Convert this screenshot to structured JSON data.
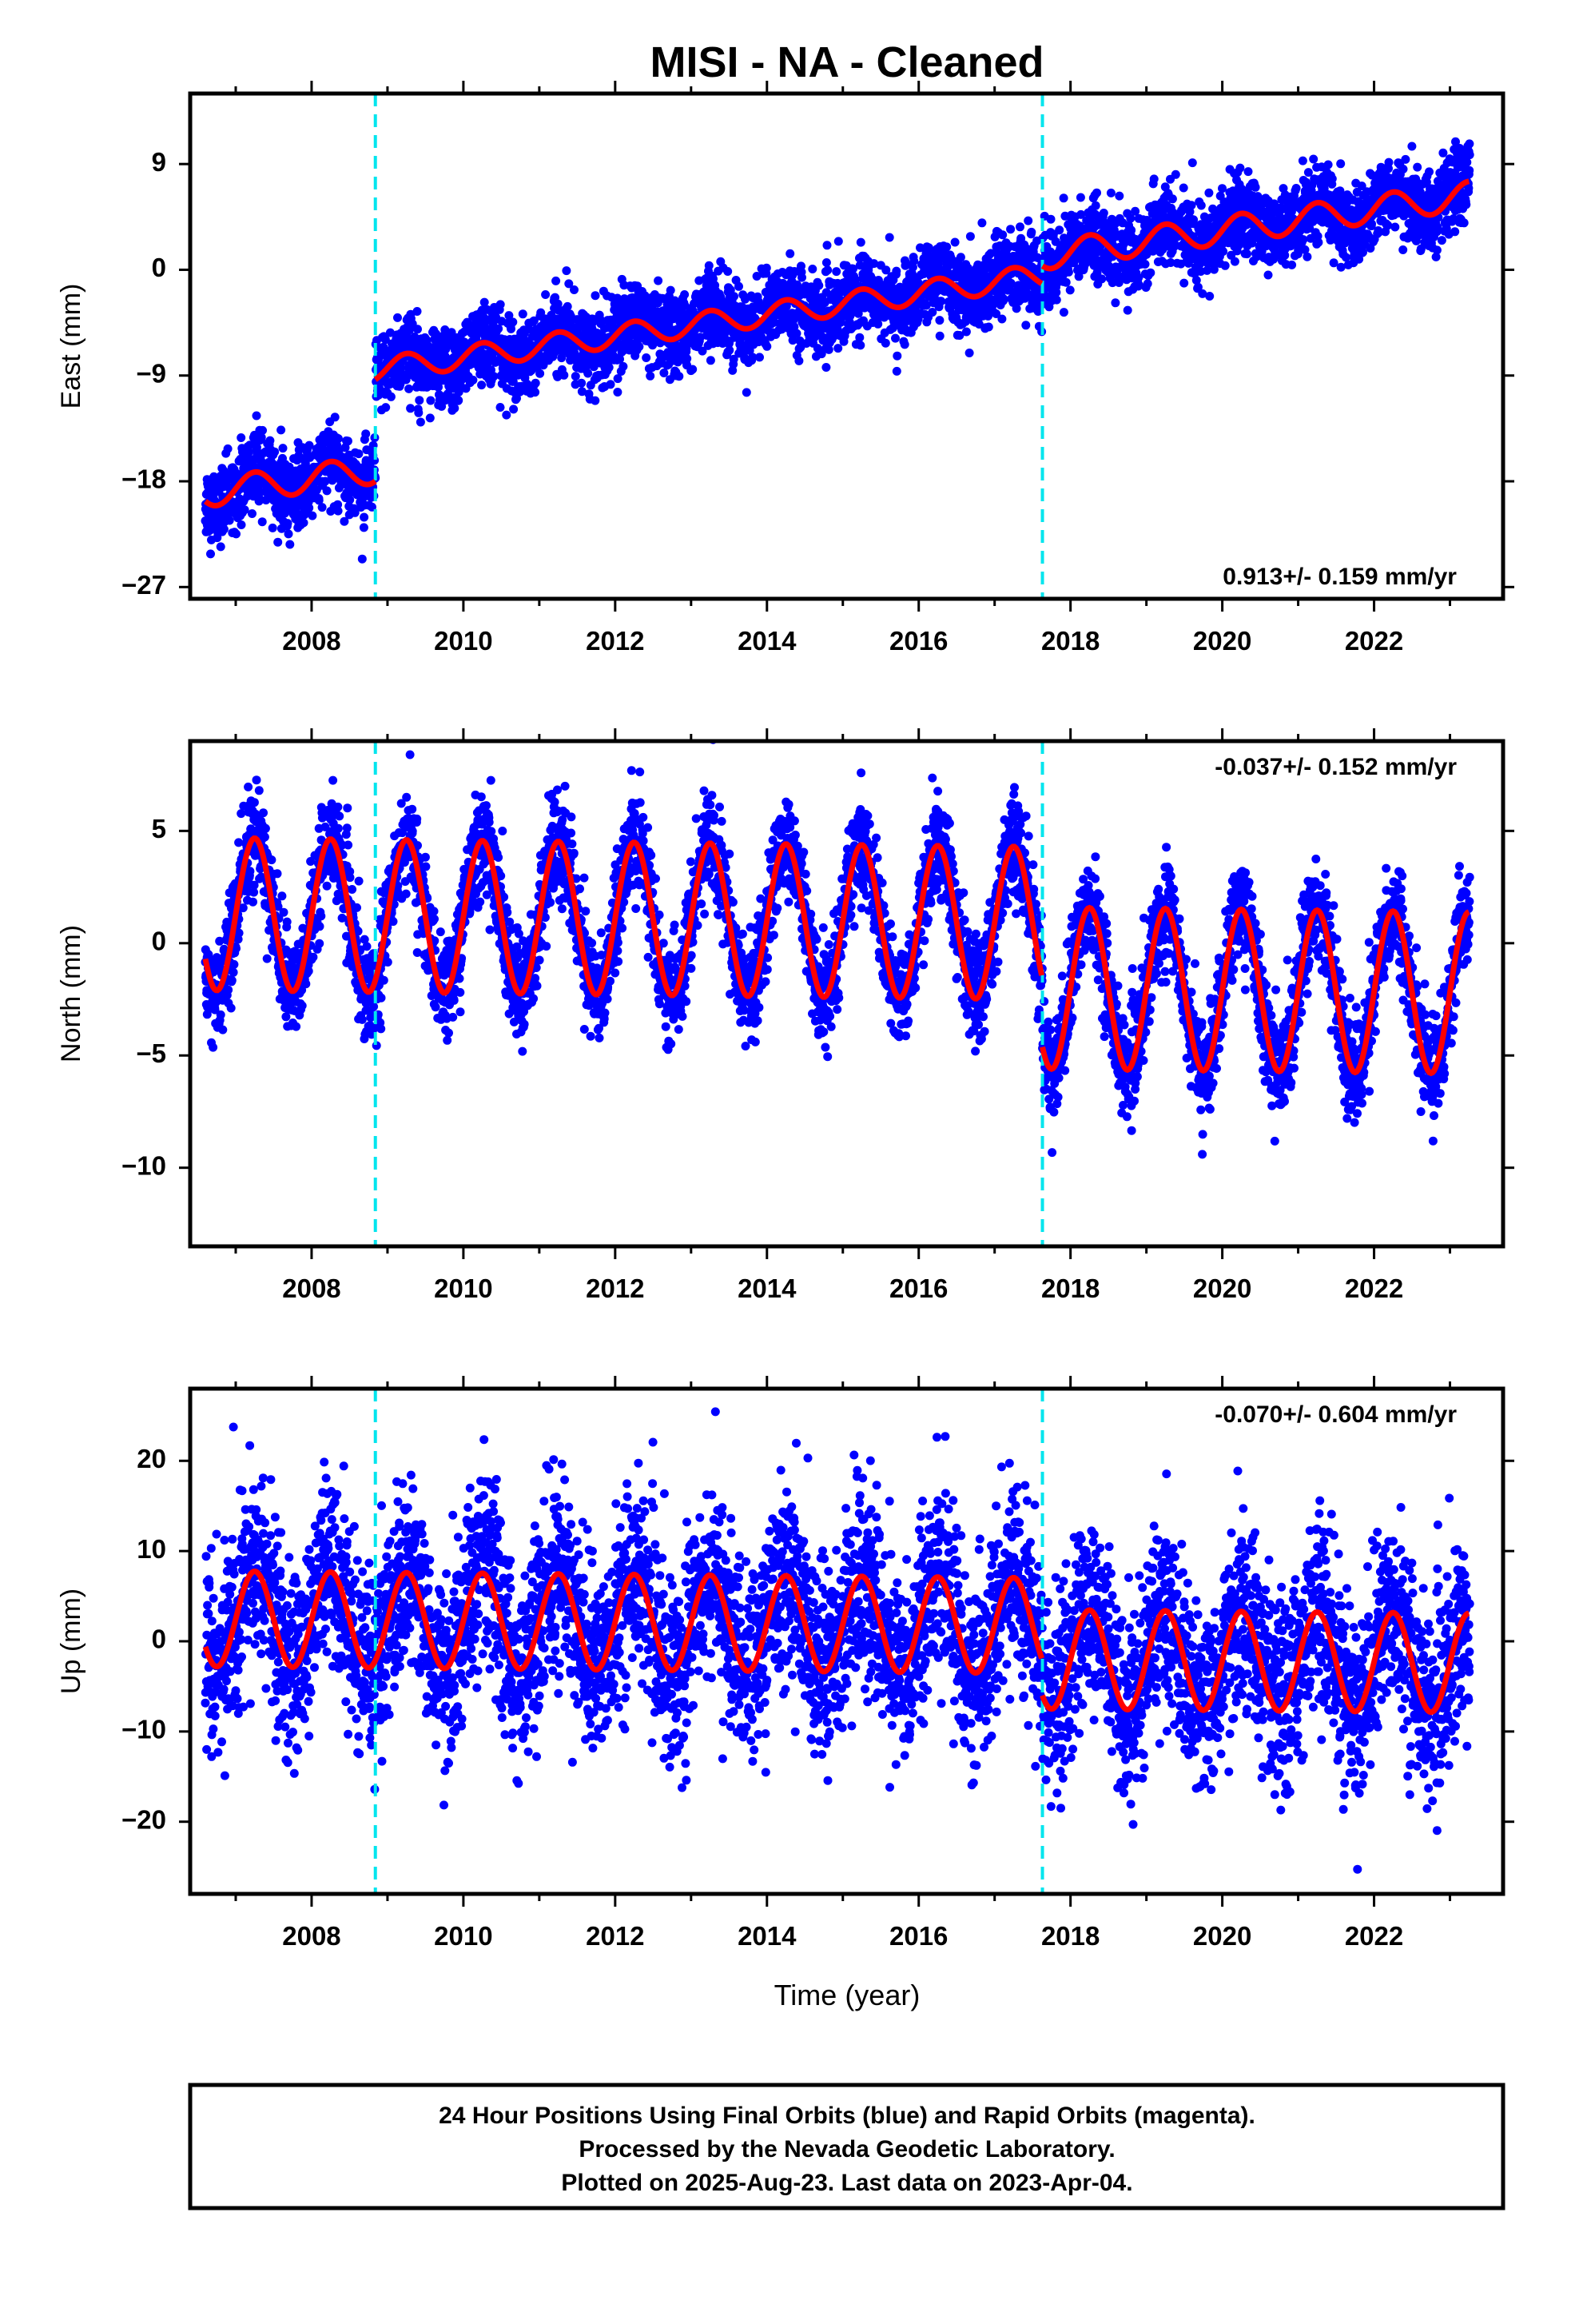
{
  "title": "MISI  - NA - Cleaned",
  "xlabel": "Time (year)",
  "caption": [
    "24 Hour Positions Using Final Orbits (blue) and Rapid Orbits (magenta).",
    "Processed by the Nevada Geodetic Laboratory.",
    "Plotted on 2025-Aug-23. Last data on 2023-Apr-04."
  ],
  "colors": {
    "points": "#0000ff",
    "model": "#ff0000",
    "offset_lines": "#00e5ee",
    "frame": "#000000"
  },
  "chart_data": [
    {
      "type": "scatter",
      "ylabel": "East (mm)",
      "rate_label": "0.913+/- 0.159 mm/yr",
      "rate_position": "bottom-right",
      "xlim": [
        2006.4,
        2023.7
      ],
      "ylim": [
        -28,
        15
      ],
      "yticks": [
        -27,
        -18,
        -9,
        0,
        9
      ],
      "yticklabels": [
        "−27",
        "−18",
        "−9",
        "0",
        "9"
      ],
      "xticks": [
        2008,
        2010,
        2012,
        2014,
        2016,
        2018,
        2020,
        2022
      ],
      "offset_epochs": [
        2008.84,
        2017.63
      ],
      "model": {
        "segments": [
          {
            "start": 2006.6,
            "end": 2008.84,
            "intercept": -19.0,
            "slope": 0.9,
            "amplitude": 1.2
          },
          {
            "start": 2008.84,
            "end": 2017.63,
            "intercept": -8.5,
            "slope": 0.913,
            "amplitude": 1.0
          },
          {
            "start": 2017.63,
            "end": 2023.26,
            "intercept": 1.2,
            "slope": 0.913,
            "amplitude": 1.2
          }
        ],
        "period": 1.0
      },
      "points_summary": {
        "start": 2006.6,
        "end": 2023.26,
        "scatter_sd": 1.6
      }
    },
    {
      "type": "scatter",
      "ylabel": "North (mm)",
      "rate_label": "-0.037+/- 0.152 mm/yr",
      "rate_position": "top-right",
      "xlim": [
        2006.4,
        2023.7
      ],
      "ylim": [
        -13.5,
        9
      ],
      "yticks": [
        -10,
        -5,
        0,
        5
      ],
      "yticklabels": [
        "−10",
        "−5",
        "0",
        "5"
      ],
      "xticks": [
        2008,
        2010,
        2012,
        2014,
        2016,
        2018,
        2020,
        2022
      ],
      "offset_epochs": [
        2008.84,
        2017.63
      ],
      "model": {
        "segments": [
          {
            "start": 2006.6,
            "end": 2017.63,
            "intercept": 1.3,
            "slope": -0.037,
            "amplitude": 3.4
          },
          {
            "start": 2017.63,
            "end": 2023.26,
            "intercept": -2.0,
            "slope": -0.037,
            "amplitude": 3.6
          }
        ],
        "period": 1.0
      },
      "points_summary": {
        "start": 2006.6,
        "end": 2023.26,
        "scatter_sd": 1.1
      }
    },
    {
      "type": "scatter",
      "ylabel": "Up (mm)",
      "rate_label": "-0.070+/- 0.604 mm/yr",
      "rate_position": "top-right",
      "xlim": [
        2006.4,
        2023.7
      ],
      "ylim": [
        -28,
        28
      ],
      "yticks": [
        -20,
        -10,
        0,
        10,
        20
      ],
      "yticklabels": [
        "−20",
        "−10",
        "0",
        "10",
        "20"
      ],
      "xticks": [
        2008,
        2010,
        2012,
        2014,
        2016,
        2018,
        2020,
        2022
      ],
      "offset_epochs": [
        2008.84,
        2017.63
      ],
      "model": {
        "segments": [
          {
            "start": 2006.6,
            "end": 2017.63,
            "intercept": 2.5,
            "slope": -0.07,
            "amplitude": 5.3
          },
          {
            "start": 2017.63,
            "end": 2023.26,
            "intercept": -2.0,
            "slope": -0.07,
            "amplitude": 5.5
          }
        ],
        "period": 1.0
      },
      "points_summary": {
        "start": 2006.6,
        "end": 2023.26,
        "scatter_sd": 5.2
      }
    }
  ]
}
